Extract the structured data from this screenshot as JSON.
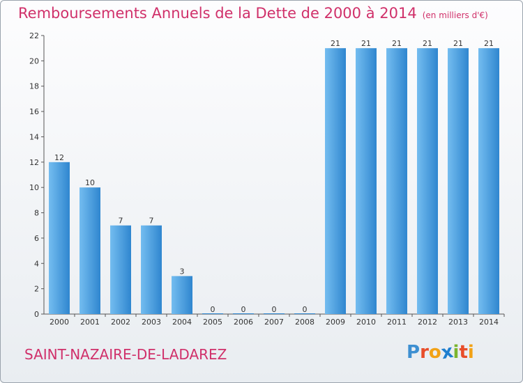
{
  "title": "Remboursements Annuels de la Dette de 2000 à 2014",
  "unit": "(en milliers d'€)",
  "commune": "SAINT-NAZAIRE-DE-LADAREZ",
  "logo": {
    "letters": [
      "P",
      "r",
      "o",
      "x",
      "i",
      "t",
      "i"
    ],
    "colors": [
      "#3d8fd1",
      "#e84d2a",
      "#f2a216",
      "#1f7fcf",
      "#7bb52f",
      "#e84d2a",
      "#f2a216"
    ]
  },
  "colors": {
    "bar": "#3f9ae0",
    "bar_light": "#63b2ec",
    "title": "#d0306a"
  },
  "chart_data": {
    "type": "bar",
    "categories": [
      "2000",
      "2001",
      "2002",
      "2003",
      "2004",
      "2005",
      "2006",
      "2007",
      "2008",
      "2009",
      "2010",
      "2011",
      "2012",
      "2013",
      "2014"
    ],
    "values": [
      12,
      10,
      7,
      7,
      3,
      0,
      0,
      0,
      0,
      21,
      21,
      21,
      21,
      21,
      21
    ],
    "value_labels": [
      "12",
      "10",
      "7",
      "7",
      "3",
      "0",
      "0",
      "0",
      "0",
      "21",
      "21",
      "21",
      "21",
      "21",
      "21"
    ],
    "yticks": [
      0,
      2,
      4,
      6,
      8,
      10,
      12,
      14,
      16,
      18,
      20,
      22
    ],
    "ylim": [
      0,
      22
    ],
    "grid": false
  }
}
